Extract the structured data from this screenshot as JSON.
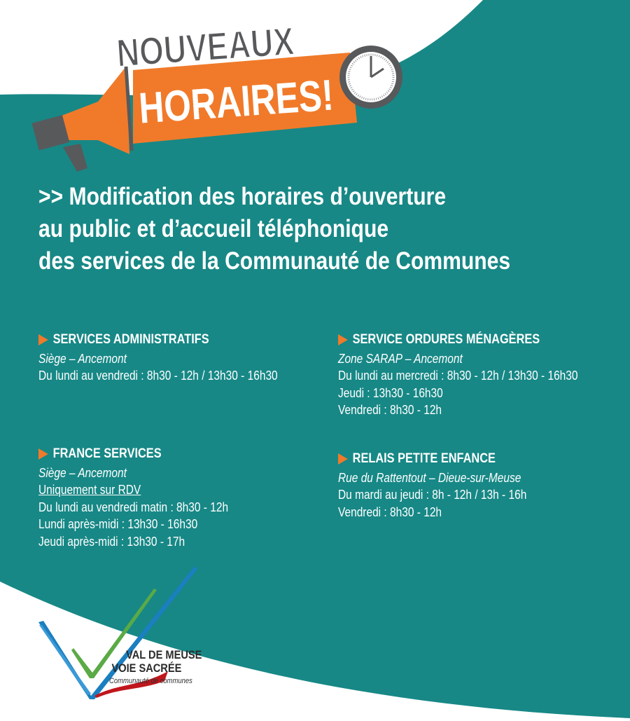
{
  "badge": {
    "line1": "NOUVEAUX",
    "line2": "HORAIRES!"
  },
  "title": {
    "lines": [
      ">> Modification des horaires d’ouverture",
      "au public et d’accueil téléphonique",
      "des services de la Communauté de Communes"
    ]
  },
  "colors": {
    "teal": "#178886",
    "orange": "#f07a2a",
    "gray": "#58595b"
  },
  "sections": [
    {
      "heading": "SERVICES ADMINISTRATIFS",
      "location": "Siège – Ancemont",
      "lines": [
        "Du lundi au vendredi : 8h30 - 12h / 13h30 - 16h30"
      ]
    },
    {
      "heading": "SERVICE ORDURES MÉNAGÈRES",
      "location": "Zone SARAP – Ancemont",
      "lines": [
        "Du lundi au mercredi : 8h30 - 12h / 13h30 - 16h30",
        "Jeudi : 13h30 - 16h30",
        "Vendredi : 8h30 - 12h"
      ]
    },
    {
      "heading": "FRANCE SERVICES",
      "location": "Siège – Ancemont",
      "note": "Uniquement sur RDV",
      "lines": [
        "Du lundi au vendredi matin : 8h30 - 12h",
        "Lundi après-midi : 13h30 - 16h30",
        "Jeudi après-midi : 13h30 - 17h"
      ]
    },
    {
      "heading": "RELAIS PETITE ENFANCE",
      "location": "Rue du Rattentout – Dieue-sur-Meuse",
      "lines": [
        "Du mardi au jeudi : 8h - 12h / 13h - 16h",
        "Vendredi : 8h30 - 12h"
      ]
    }
  ],
  "logo": {
    "line1": "VAL DE MEUSE",
    "line2": "VOIE SACRÉE",
    "subtitle": "Communauté de communes"
  }
}
